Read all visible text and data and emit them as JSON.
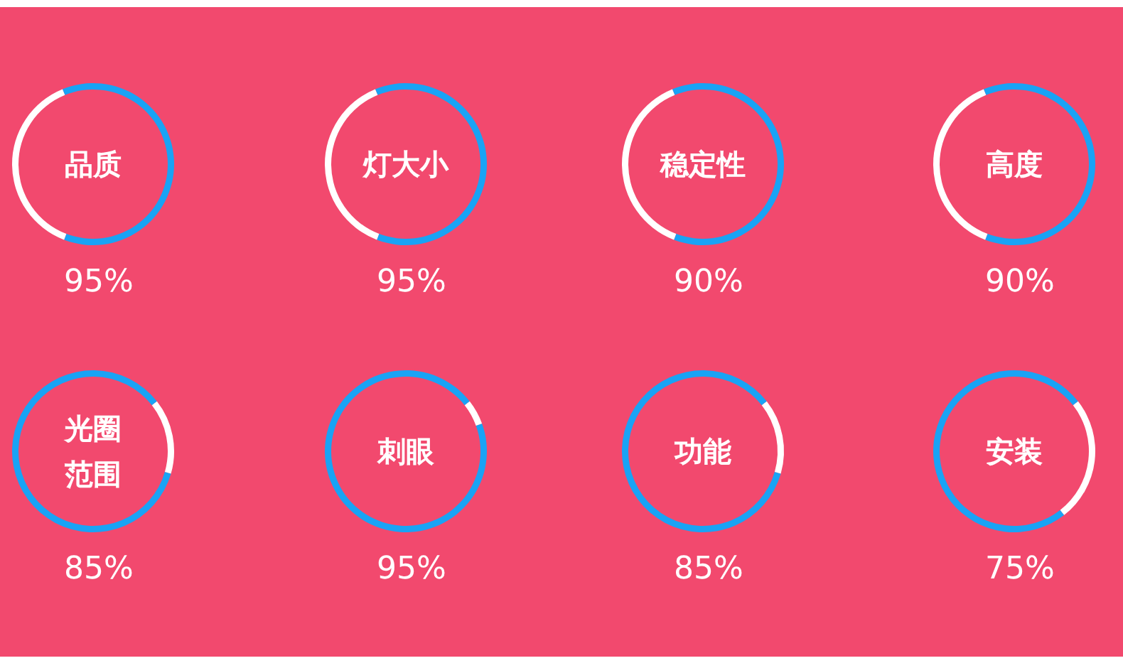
{
  "chart_data": [
    {
      "type": "donut",
      "title": "品质",
      "categories": [
        null,
        null
      ],
      "values": [
        62,
        38
      ],
      "colors": [
        "#19a3f5",
        "#ffffff"
      ],
      "annotations": [
        "95%"
      ]
    },
    {
      "type": "donut",
      "title": "灯大小",
      "categories": [
        null,
        null
      ],
      "values": [
        62,
        38
      ],
      "colors": [
        "#19a3f5",
        "#ffffff"
      ],
      "annotations": [
        "95%"
      ]
    },
    {
      "type": "donut",
      "title": "稳定性",
      "categories": [
        null,
        null
      ],
      "values": [
        62,
        38
      ],
      "colors": [
        "#19a3f5",
        "#ffffff"
      ],
      "annotations": [
        "90%"
      ]
    },
    {
      "type": "donut",
      "title": "高度",
      "categories": [
        null,
        null
      ],
      "values": [
        62,
        38
      ],
      "colors": [
        "#19a3f5",
        "#ffffff"
      ],
      "annotations": [
        "90%"
      ]
    },
    {
      "type": "donut",
      "title": "光圈范围",
      "categories": [
        null,
        null
      ],
      "values": [
        85,
        15
      ],
      "colors": [
        "#19a3f5",
        "#ffffff"
      ],
      "annotations": [
        "85%"
      ]
    },
    {
      "type": "donut",
      "title": "刺眼",
      "categories": [
        null,
        null
      ],
      "values": [
        95,
        5
      ],
      "colors": [
        "#19a3f5",
        "#ffffff"
      ],
      "annotations": [
        "95%"
      ]
    },
    {
      "type": "donut",
      "title": "功能",
      "categories": [
        null,
        null
      ],
      "values": [
        85,
        15
      ],
      "colors": [
        "#19a3f5",
        "#ffffff"
      ],
      "annotations": [
        "85%"
      ]
    },
    {
      "type": "donut",
      "title": "安装",
      "categories": [
        null,
        null
      ],
      "values": [
        75,
        25
      ],
      "colors": [
        "#19a3f5",
        "#ffffff"
      ],
      "annotations": [
        "75%"
      ]
    }
  ]
}
